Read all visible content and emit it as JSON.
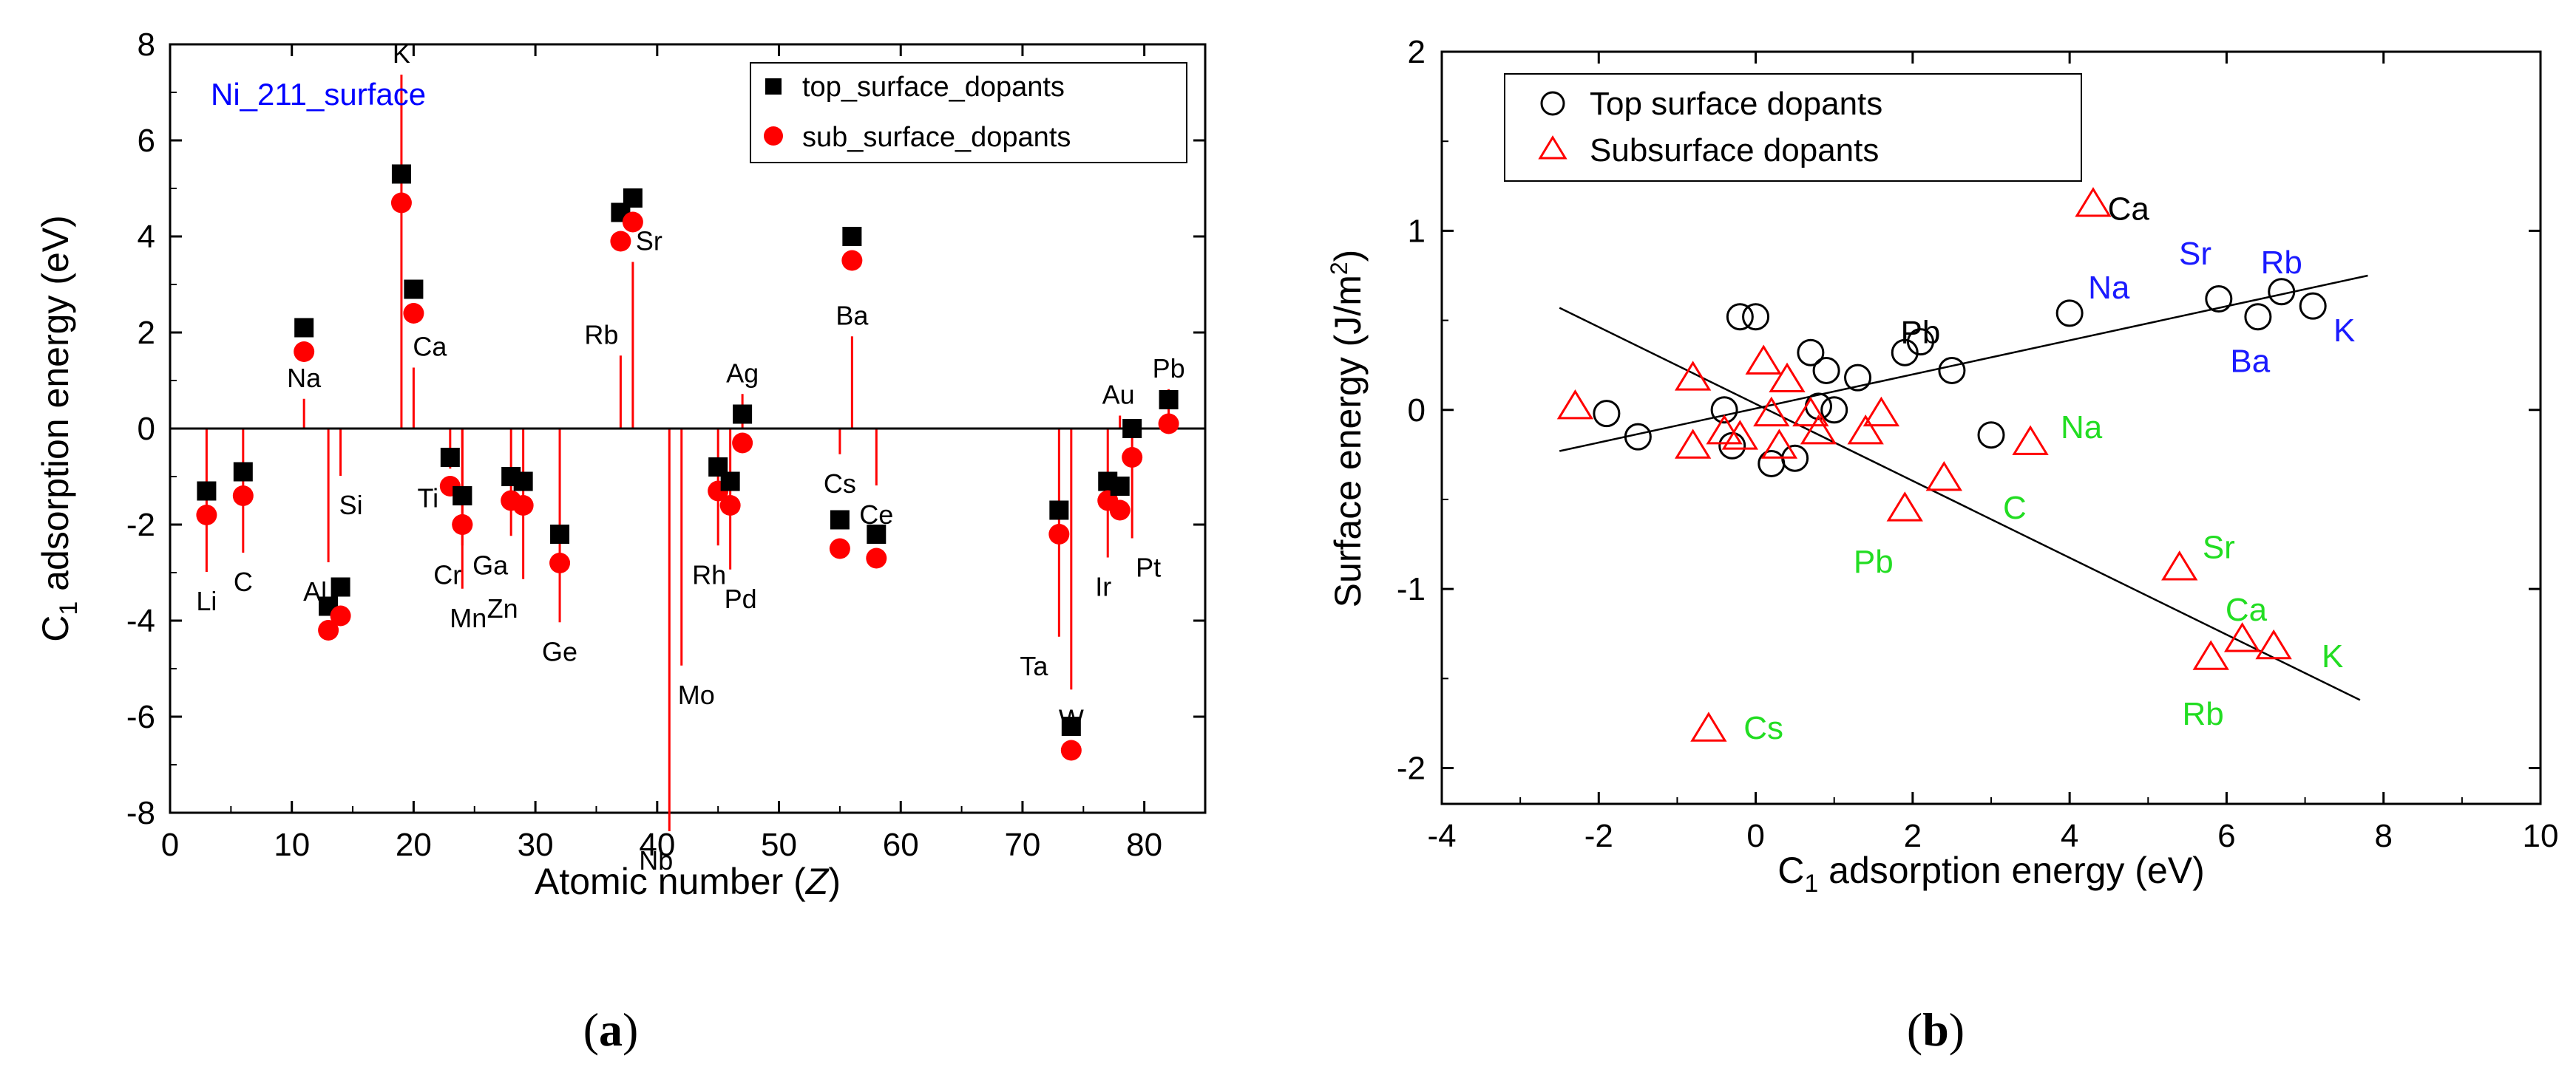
{
  "chart_data": [
    {
      "id": "a",
      "type": "scatter",
      "caption": "a",
      "inset_title": "Ni_211_surface",
      "xlabel": "Atomic number (Z)",
      "xlabel_main": "Atomic number (",
      "xlabel_var": "Z",
      "xlabel_end": ")",
      "ylabel": "C1 adsorption energy (eV)",
      "ylabel_pre": "C",
      "ylabel_sub": "1",
      "ylabel_post": " adsorption energy (eV)",
      "xlim": [
        0,
        85
      ],
      "ylim": [
        -8,
        8
      ],
      "xticks": [
        0,
        10,
        20,
        30,
        40,
        50,
        60,
        70,
        80
      ],
      "yticks": [
        -8,
        -6,
        -4,
        -2,
        0,
        2,
        4,
        6,
        8
      ],
      "grid": false,
      "legend_position": "top-right",
      "colors": {
        "top": "#000000",
        "sub": "#ff0000",
        "stem": "#ff0000",
        "title": "#0000ff"
      },
      "series": [
        {
          "name": "top_surface_dopants",
          "marker": "square"
        },
        {
          "name": "sub_surface_dopants",
          "marker": "circle"
        }
      ],
      "points": [
        {
          "el": "Li",
          "z": 3,
          "top": -1.3,
          "sub": -1.8,
          "lab_y": -3.6
        },
        {
          "el": "C",
          "z": 6,
          "top": -0.9,
          "sub": -1.4,
          "lab_y": -3.2
        },
        {
          "el": "Na",
          "z": 11,
          "top": 2.1,
          "sub": 1.6,
          "lab_y": 1.05
        },
        {
          "el": "Al",
          "z": 13,
          "top": -3.7,
          "sub": -4.2,
          "lab_y": -3.4
        },
        {
          "el": "Si",
          "z": 14,
          "top": -3.3,
          "sub": -3.9,
          "lab_y": -1.6
        },
        {
          "el": "K",
          "z": 19,
          "top": 5.3,
          "sub": 4.7,
          "lab_y": 7.8
        },
        {
          "el": "Ca",
          "z": 20,
          "top": 2.9,
          "sub": 2.4,
          "lab_y": 1.7
        },
        {
          "el": "Ti",
          "z": 23,
          "top": -0.6,
          "sub": -1.2,
          "lab_y": -1.45
        },
        {
          "el": "Cr",
          "z": 24,
          "top": -1.4,
          "sub": -2.0,
          "lab_y": -3.05
        },
        {
          "el": "Mn",
          "z": 24,
          "top": -1.4,
          "sub": -2.0,
          "lab_y": -3.95
        },
        {
          "el": "Ga",
          "z": 28,
          "top": -1.0,
          "sub": -1.5,
          "lab_y": -2.85
        },
        {
          "el": "Zn",
          "z": 29,
          "top": -1.1,
          "sub": -1.6,
          "lab_y": -3.75
        },
        {
          "el": "Ge",
          "z": 32,
          "top": -2.2,
          "sub": -2.8,
          "lab_y": -4.65
        },
        {
          "el": "Rb",
          "z": 37,
          "top": 4.5,
          "sub": 3.9,
          "lab_y": 1.95
        },
        {
          "el": "Sr",
          "z": 38,
          "top": 4.8,
          "sub": 4.3,
          "lab_y": 3.9
        },
        {
          "el": "Nb",
          "z": 41,
          "top": null,
          "sub": null,
          "lab_y": -9.0
        },
        {
          "el": "Mo",
          "z": 42,
          "top": null,
          "sub": null,
          "lab_y": -5.55
        },
        {
          "el": "Rh",
          "z": 45,
          "top": -0.8,
          "sub": -1.3,
          "lab_y": -3.05
        },
        {
          "el": "Pd",
          "z": 46,
          "top": -1.1,
          "sub": -1.6,
          "lab_y": -3.55
        },
        {
          "el": "Ag",
          "z": 47,
          "top": 0.3,
          "sub": -0.3,
          "lab_y": 1.15
        },
        {
          "el": "Cs",
          "z": 55,
          "top": -1.9,
          "sub": -2.5,
          "lab_y": -1.15
        },
        {
          "el": "Ba",
          "z": 56,
          "top": 4.0,
          "sub": 3.5,
          "lab_y": 2.35
        },
        {
          "el": "Ce",
          "z": 58,
          "top": -2.2,
          "sub": -2.7,
          "lab_y": -1.8
        },
        {
          "el": "Ta",
          "z": 73,
          "top": -1.7,
          "sub": -2.2,
          "lab_y": -4.95
        },
        {
          "el": "W",
          "z": 74,
          "top": -6.2,
          "sub": -6.7,
          "lab_y": -6.05
        },
        {
          "el": "Ir",
          "z": 77,
          "top": -1.1,
          "sub": -1.5,
          "lab_y": -3.3
        },
        {
          "el": "Au",
          "z": 78,
          "top": -1.2,
          "sub": -1.7,
          "lab_y": 0.7
        },
        {
          "el": "Pt",
          "z": 79,
          "top": 0.0,
          "sub": -0.6,
          "lab_y": -2.9
        },
        {
          "el": "Pb",
          "z": 82,
          "top": 0.6,
          "sub": 0.1,
          "lab_y": 1.25
        }
      ]
    },
    {
      "id": "b",
      "type": "scatter",
      "caption": "b",
      "xlabel": "C1 adsorption energy (eV)",
      "xlabel_pre": "C",
      "xlabel_sub": "1",
      "xlabel_post": "  adsorption energy (eV)",
      "ylabel": "Surface energy (J/m2)",
      "ylabel_pre": "Surface energy (J/m",
      "ylabel_sup": "2",
      "ylabel_post": ")",
      "xlim": [
        -4,
        10
      ],
      "ylim": [
        -2.2,
        2
      ],
      "xticks": [
        -4,
        -2,
        0,
        2,
        4,
        6,
        8,
        10
      ],
      "yticks": [
        -2,
        -1,
        0,
        1,
        2
      ],
      "grid": false,
      "legend_position": "top-left",
      "colors": {
        "top": "#000000",
        "sub": "#ff0000",
        "label_top": "#1a1aff",
        "label_sub": "#22dd22",
        "label_plain": "#000000"
      },
      "series": [
        {
          "name": "Top surface dopants",
          "marker": "open-circle",
          "x": [
            -1.9,
            -1.5,
            -0.4,
            -0.2,
            0.0,
            -0.3,
            0.2,
            0.5,
            0.7,
            0.9,
            0.8,
            1.0,
            1.3,
            1.9,
            2.1,
            2.5,
            3.0,
            4.0,
            5.9,
            6.4,
            6.7,
            7.1
          ],
          "y": [
            -0.02,
            -0.15,
            0.0,
            0.52,
            0.52,
            -0.2,
            -0.3,
            -0.27,
            0.32,
            0.22,
            0.02,
            0.0,
            0.18,
            0.32,
            0.38,
            0.22,
            -0.14,
            0.54,
            0.62,
            0.52,
            0.66,
            0.58
          ]
        },
        {
          "name": "Subsurface dopants",
          "marker": "open-triangle",
          "x": [
            -2.3,
            -0.8,
            -0.8,
            -0.4,
            -0.2,
            0.1,
            0.2,
            0.3,
            0.4,
            0.7,
            0.8,
            1.4,
            1.6,
            1.9,
            2.4,
            3.5,
            4.3,
            5.4,
            6.2,
            5.8,
            6.6,
            -0.6
          ],
          "y": [
            0.02,
            0.18,
            -0.2,
            -0.12,
            -0.15,
            0.27,
            -0.02,
            -0.2,
            0.17,
            -0.02,
            -0.12,
            -0.12,
            -0.02,
            -0.55,
            -0.38,
            -0.18,
            1.15,
            -0.88,
            -1.28,
            -1.38,
            -1.32,
            -1.78
          ]
        }
      ],
      "fit_lines": [
        {
          "name": "top_fit",
          "x": [
            -2.5,
            7.8
          ],
          "y": [
            -0.23,
            0.75
          ]
        },
        {
          "name": "sub_fit",
          "x": [
            -2.5,
            7.7
          ],
          "y": [
            0.57,
            -1.62
          ]
        }
      ],
      "annotations": [
        {
          "text": "Ca",
          "x": 4.75,
          "y": 1.12,
          "color": "label_plain"
        },
        {
          "text": "Na",
          "x": 4.5,
          "y": 0.68,
          "color": "label_top"
        },
        {
          "text": "Sr",
          "x": 5.6,
          "y": 0.87,
          "color": "label_top"
        },
        {
          "text": "Rb",
          "x": 6.7,
          "y": 0.82,
          "color": "label_top"
        },
        {
          "text": "Ba",
          "x": 6.3,
          "y": 0.27,
          "color": "label_top"
        },
        {
          "text": "K",
          "x": 7.5,
          "y": 0.44,
          "color": "label_top"
        },
        {
          "text": "Pb",
          "x": 2.1,
          "y": 0.43,
          "color": "label_plain"
        },
        {
          "text": "Na",
          "x": 4.15,
          "y": -0.1,
          "color": "label_sub"
        },
        {
          "text": "C",
          "x": 3.3,
          "y": -0.55,
          "color": "label_sub"
        },
        {
          "text": "Pb",
          "x": 1.5,
          "y": -0.85,
          "color": "label_sub"
        },
        {
          "text": "Sr",
          "x": 5.9,
          "y": -0.77,
          "color": "label_sub"
        },
        {
          "text": "Ca",
          "x": 6.25,
          "y": -1.12,
          "color": "label_sub"
        },
        {
          "text": "K",
          "x": 7.35,
          "y": -1.38,
          "color": "label_sub"
        },
        {
          "text": "Rb",
          "x": 5.7,
          "y": -1.7,
          "color": "label_sub"
        },
        {
          "text": "Cs",
          "x": 0.1,
          "y": -1.78,
          "color": "label_sub"
        }
      ]
    }
  ]
}
